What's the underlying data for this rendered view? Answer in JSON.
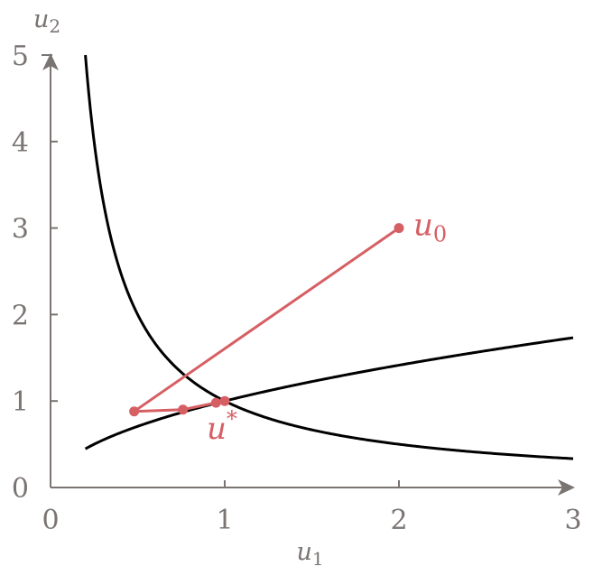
{
  "chart_data": {
    "type": "line",
    "title": "",
    "xlabel": "u",
    "xlabel_sub": "1",
    "ylabel": "u",
    "ylabel_sub": "2",
    "xlim": [
      0,
      3
    ],
    "ylim": [
      0,
      5
    ],
    "xticks": [
      0,
      1,
      2,
      3
    ],
    "yticks": [
      0,
      1,
      2,
      3,
      4,
      5
    ],
    "xtick_labels": [
      "0",
      "1",
      "2",
      "3"
    ],
    "ytick_labels": [
      "0",
      "1",
      "2",
      "3",
      "4",
      "5"
    ],
    "grid": false,
    "legend": "none",
    "colors": {
      "axis": "#7a7472",
      "curve": "#000000",
      "iterates": "#d65f64"
    },
    "series": [
      {
        "kind": "curve",
        "formula": "u2 = 1/u1",
        "x_range": [
          0.2,
          3
        ],
        "y_range": [
          5,
          0.333
        ]
      },
      {
        "kind": "curve",
        "formula": "u2 = sqrt(u1)",
        "x_range": [
          0.2,
          3
        ],
        "y_range": [
          0.447,
          1.732
        ]
      },
      {
        "kind": "iterates",
        "points": [
          {
            "x": 2.0,
            "y": 3.0
          },
          {
            "x": 0.48,
            "y": 0.88
          },
          {
            "x": 0.76,
            "y": 0.9
          },
          {
            "x": 0.95,
            "y": 0.98
          },
          {
            "x": 1.0,
            "y": 1.0
          }
        ]
      }
    ],
    "annotations": [
      {
        "text": "u",
        "sub": "0",
        "x": 2.0,
        "y": 3.0
      },
      {
        "text": "u",
        "sup": "*",
        "x": 1.0,
        "y": 1.0
      }
    ]
  }
}
